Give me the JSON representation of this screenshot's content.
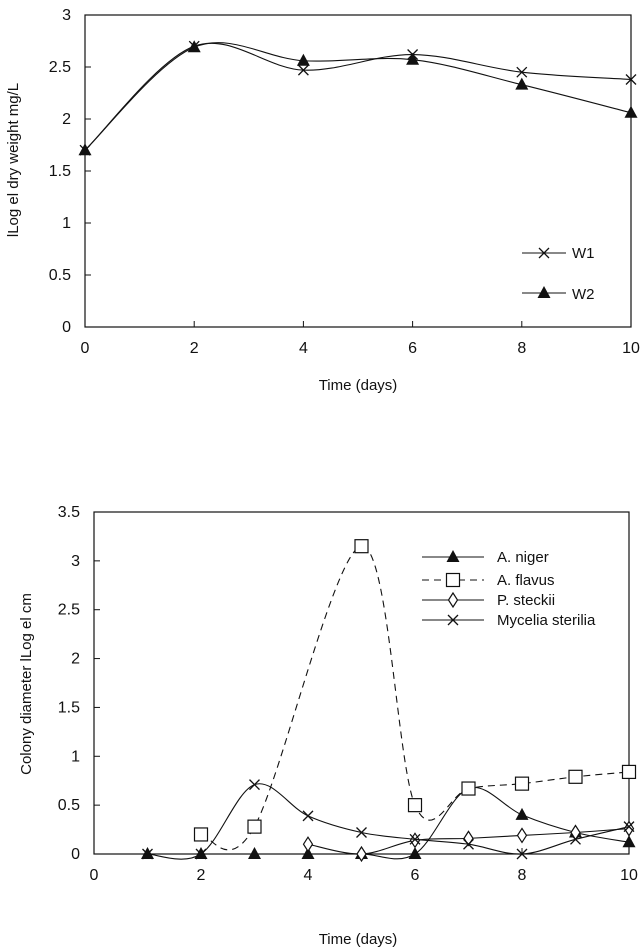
{
  "chart_data": [
    {
      "type": "line",
      "xlabel": "Time (days)",
      "ylabel": "lLog el dry weight mg/L",
      "xlim": [
        0,
        10
      ],
      "ylim": [
        0,
        3
      ],
      "xticks": [
        "0",
        "2",
        "4",
        "6",
        "8",
        "10"
      ],
      "yticks": [
        "0",
        "0.5",
        "1",
        "1.5",
        "2",
        "2.5",
        "3"
      ],
      "grid": false,
      "legend_position": "bottom-right",
      "series": [
        {
          "name": "W1",
          "marker": "cross",
          "dash": "solid",
          "color": "#111111",
          "x": [
            0,
            2,
            4,
            6,
            8,
            10
          ],
          "y": [
            1.7,
            2.7,
            2.47,
            2.62,
            2.45,
            2.38
          ]
        },
        {
          "name": "W2",
          "marker": "triangle",
          "dash": "solid",
          "color": "#111111",
          "x": [
            0,
            2,
            4,
            6,
            8,
            10
          ],
          "y": [
            1.7,
            2.69,
            2.56,
            2.57,
            2.33,
            2.06
          ]
        }
      ]
    },
    {
      "type": "line",
      "xlabel": "Time (days)",
      "ylabel": "Colony diameter lLog el cm",
      "xlim": [
        0,
        10
      ],
      "ylim": [
        0,
        3.5
      ],
      "xticks": [
        "0",
        "2",
        "4",
        "6",
        "8",
        "10"
      ],
      "yticks": [
        "0",
        "0.5",
        "1",
        "1.5",
        "2",
        "2.5",
        "3",
        "3.5"
      ],
      "grid": false,
      "legend_position": "top-right",
      "series": [
        {
          "name": "A. niger",
          "marker": "triangle",
          "dash": "solid",
          "color": "#111111",
          "x": [
            1,
            2,
            3,
            4,
            5,
            6,
            7,
            8,
            9,
            10
          ],
          "y": [
            0,
            0,
            0,
            0,
            0,
            0,
            0.67,
            0.4,
            0.22,
            0.12
          ]
        },
        {
          "name": "A. flavus",
          "marker": "square",
          "dash": "dashed",
          "color": "#111111",
          "x": [
            2,
            3,
            5,
            6,
            7,
            8,
            9,
            10
          ],
          "y": [
            0.2,
            0.28,
            3.15,
            0.5,
            0.67,
            0.72,
            0.79,
            0.84
          ]
        },
        {
          "name": "P. steckii",
          "marker": "diamond",
          "dash": "solid",
          "color": "#111111",
          "x": [
            4,
            5,
            6,
            7,
            8,
            9,
            10
          ],
          "y": [
            0.1,
            0,
            0.14,
            0.16,
            0.19,
            0.22,
            0.26
          ]
        },
        {
          "name": "Mycelia sterilia",
          "marker": "cross",
          "dash": "solid",
          "color": "#111111",
          "x": [
            1,
            2,
            3,
            4,
            5,
            6,
            7,
            8,
            9,
            10
          ],
          "y": [
            0,
            0,
            0.71,
            0.39,
            0.22,
            0.15,
            0.1,
            0,
            0.15,
            0.28
          ]
        }
      ]
    }
  ]
}
